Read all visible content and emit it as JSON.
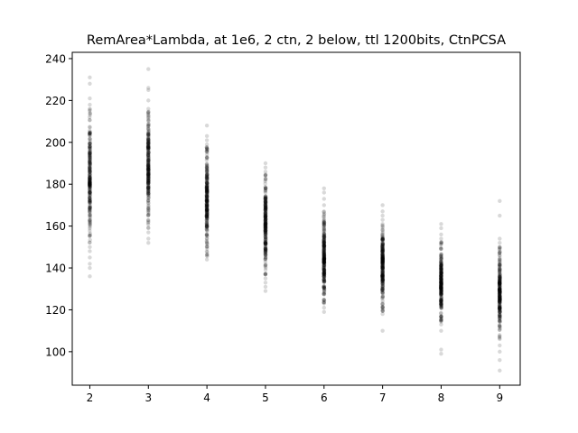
{
  "chart_data": {
    "type": "scatter",
    "title": "RemArea*Lambda, at 1e6, 2 ctn, 2 below, ttl 1200bits, CtnPCSA",
    "xlabel": "",
    "ylabel": "",
    "xlim": [
      1.7,
      9.35
    ],
    "ylim": [
      84,
      243
    ],
    "x_ticks": [
      "2",
      "3",
      "4",
      "5",
      "6",
      "7",
      "8",
      "9"
    ],
    "y_ticks": [
      "100",
      "120",
      "140",
      "160",
      "180",
      "200",
      "220",
      "240"
    ],
    "grid": false,
    "legend": "none",
    "marker_color": "#000000",
    "marker_alpha": 0.15,
    "groups": [
      {
        "x": 2,
        "dense_range": [
          155,
          213
        ],
        "outliers": [
          136,
          140,
          142,
          145,
          148,
          150,
          216,
          218,
          221,
          228,
          231
        ]
      },
      {
        "x": 3,
        "dense_range": [
          162,
          212
        ],
        "outliers": [
          152,
          154,
          157,
          159,
          214,
          216,
          220,
          225,
          226,
          235
        ]
      },
      {
        "x": 4,
        "dense_range": [
          148,
          195
        ],
        "outliers": [
          144,
          146,
          197,
          199,
          201,
          203,
          208
        ]
      },
      {
        "x": 5,
        "dense_range": [
          139,
          182
        ],
        "outliers": [
          129,
          131,
          133,
          135,
          137,
          184,
          186,
          188,
          190
        ]
      },
      {
        "x": 6,
        "dense_range": [
          126,
          165
        ],
        "outliers": [
          119,
          121,
          123,
          167,
          170,
          173,
          176,
          178
        ]
      },
      {
        "x": 7,
        "dense_range": [
          122,
          159
        ],
        "outliers": [
          110,
          118,
          120,
          161,
          163,
          165,
          167,
          170
        ]
      },
      {
        "x": 8,
        "dense_range": [
          117,
          150
        ],
        "outliers": [
          99,
          101,
          110,
          113,
          115,
          152,
          154,
          156,
          159,
          161
        ]
      },
      {
        "x": 9,
        "dense_range": [
          109,
          147
        ],
        "outliers": [
          91,
          96,
          100,
          103,
          106,
          150,
          152,
          154,
          165,
          172
        ]
      }
    ]
  }
}
